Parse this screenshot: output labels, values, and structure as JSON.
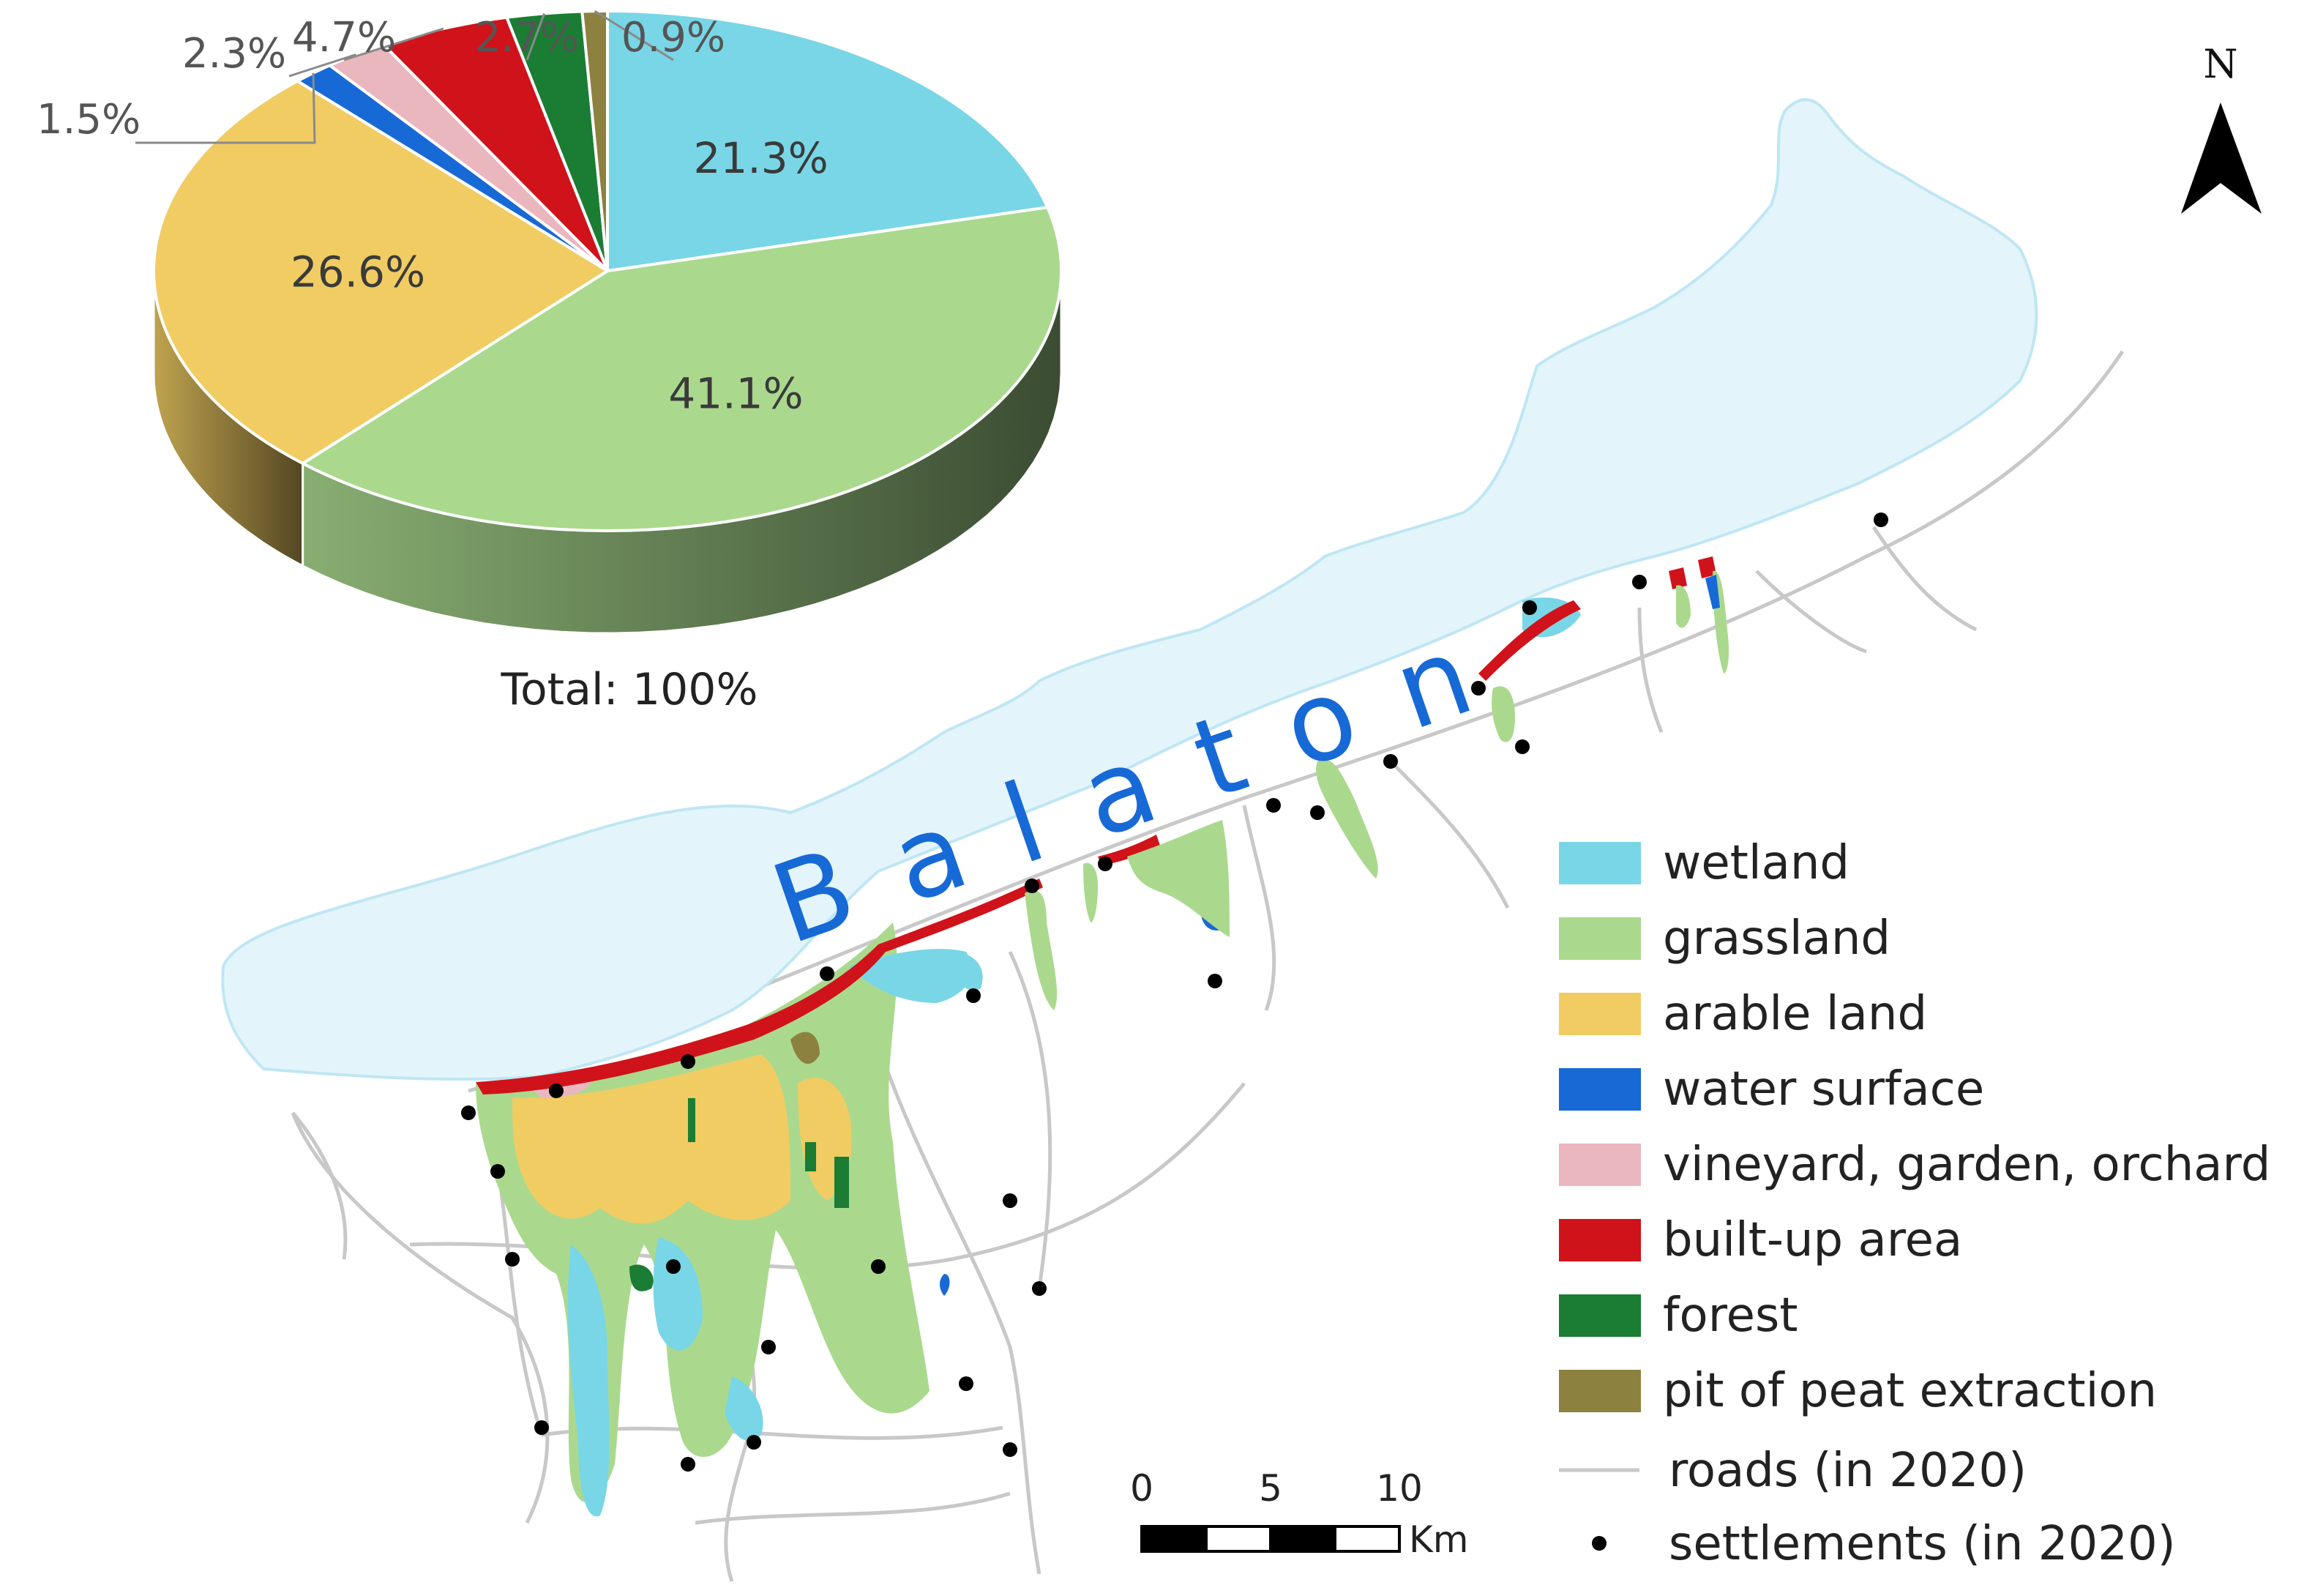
{
  "lake_label": "Balaton",
  "north_label": "N",
  "pie": {
    "total_label": "Total: 100%",
    "colors": {
      "wetland": "#79d6e6",
      "grassland": "#aad98e",
      "arable land": "#f0cc63",
      "water surface": "#1769d6",
      "vineyard, garden, orchard": "#ebb7bf",
      "built-up area": "#d0121a",
      "forest": "#1a7d33",
      "pit of peat extraction": "#8d8140"
    }
  },
  "chart_data": {
    "type": "pie",
    "categories": [
      "wetland",
      "grassland",
      "arable land",
      "water surface",
      "vineyard, garden, orchard",
      "built-up area",
      "forest",
      "pit of peat extraction"
    ],
    "values": [
      21.3,
      41.1,
      26.6,
      1.5,
      2.3,
      4.7,
      2.7,
      0.9
    ],
    "labels": [
      "21.3%",
      "41.1%",
      "26.6%",
      "1.5%",
      "2.3%",
      "4.7%",
      "2.7%",
      "0.9%"
    ]
  },
  "legend": {
    "items": [
      {
        "label": "wetland",
        "color": "#79d6e6"
      },
      {
        "label": "grassland",
        "color": "#aad98e"
      },
      {
        "label": "arable land",
        "color": "#f0cc63"
      },
      {
        "label": "water surface",
        "color": "#1769d6"
      },
      {
        "label": "vineyard, garden, orchard",
        "color": "#ebb7bf"
      },
      {
        "label": "built-up area",
        "color": "#d0121a"
      },
      {
        "label": "forest",
        "color": "#1a7d33"
      },
      {
        "label": "pit of peat extraction",
        "color": "#8d8140"
      }
    ],
    "roads_label": "roads (in 2020)",
    "settlements_label": "settlements (in 2020)"
  },
  "scale_bar": {
    "ticks": [
      "0",
      "5",
      "10"
    ],
    "unit": "Km"
  },
  "map_colors": {
    "lake": "#e3f5fb",
    "lake_outline": "#bfe6f3",
    "roads": "#c8c8c8",
    "settlement": "#000000"
  }
}
